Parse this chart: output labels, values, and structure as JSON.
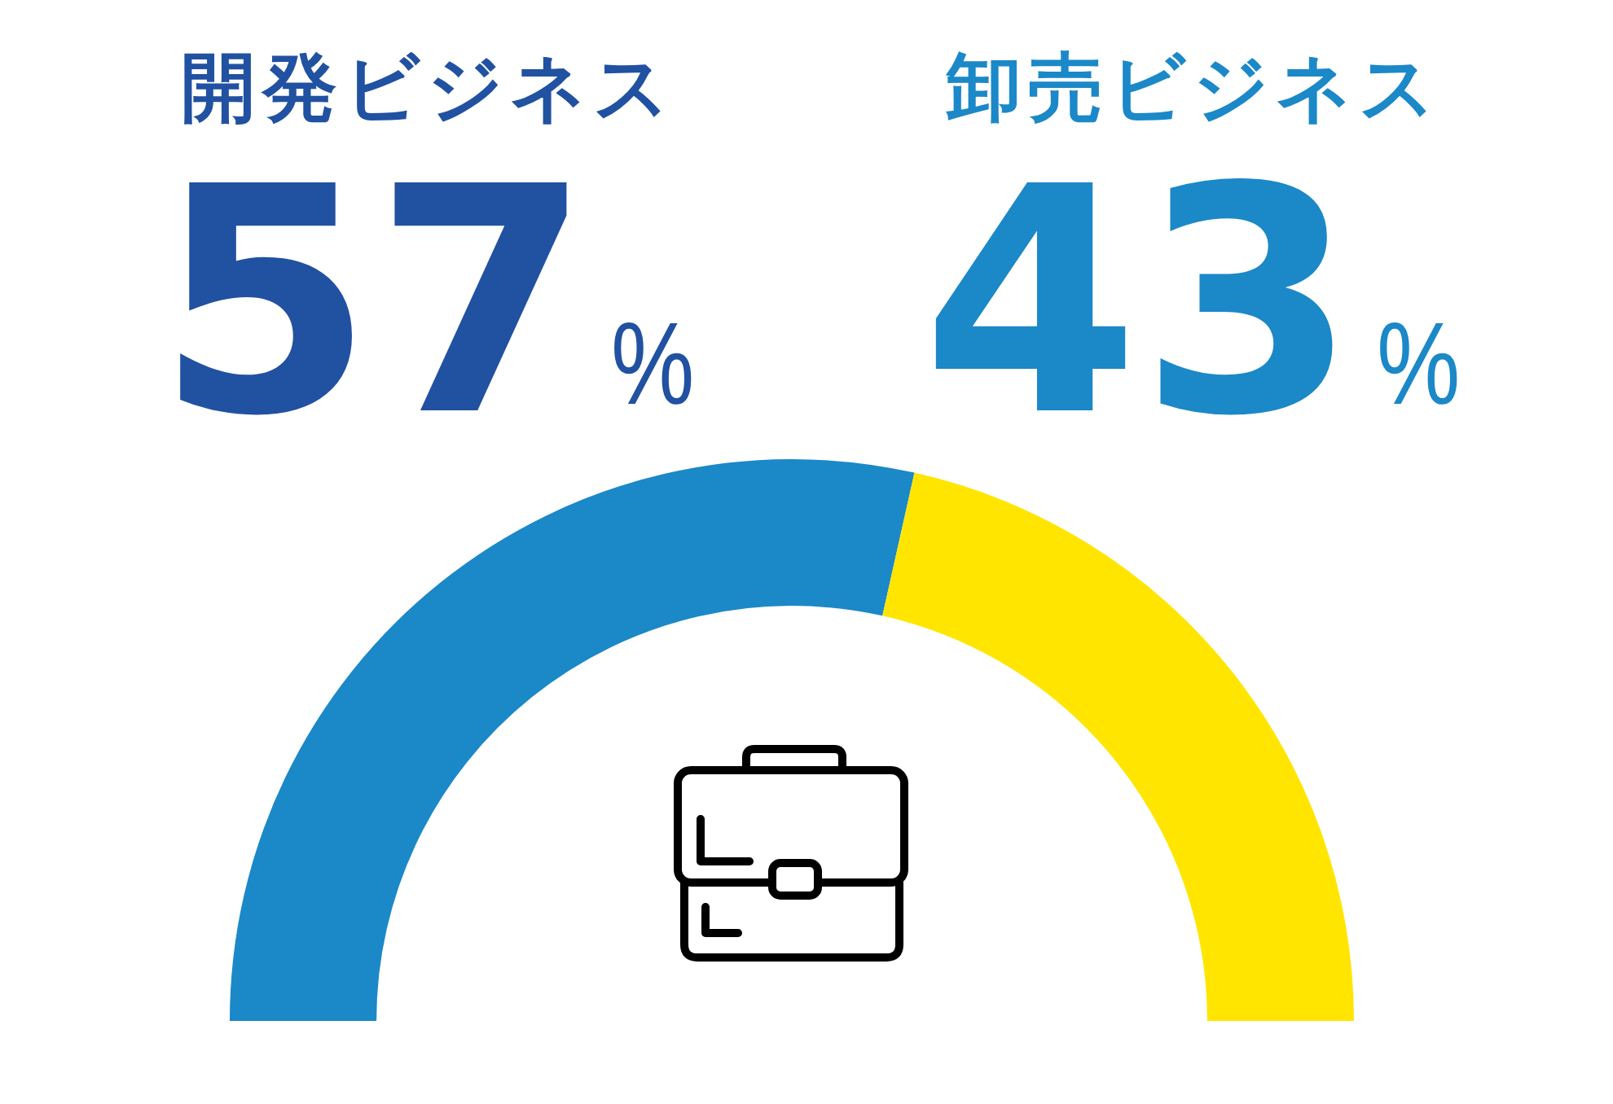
{
  "chart_data": {
    "type": "donut",
    "categories": [
      "開発ビジネス",
      "卸売ビジネス"
    ],
    "values": [
      57,
      43
    ],
    "colors": [
      "#1b88c8",
      "#ffe500"
    ],
    "value_labels": [
      "57%",
      "43%"
    ]
  }
}
